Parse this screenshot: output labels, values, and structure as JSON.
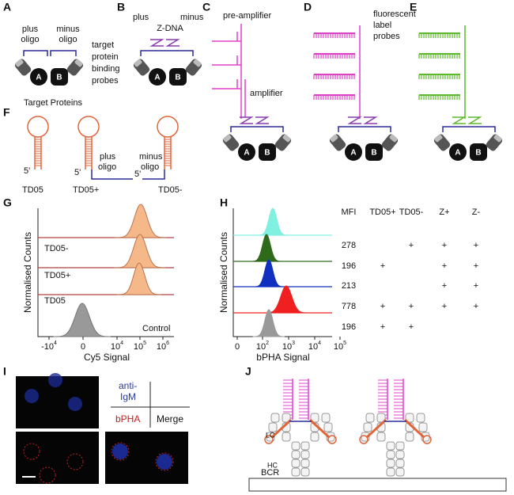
{
  "panel_labels": [
    "A",
    "B",
    "C",
    "D",
    "E",
    "F",
    "G",
    "H",
    "I",
    "J"
  ],
  "A": {
    "plus": [
      "plus",
      "oligo"
    ],
    "minus": [
      "minus",
      "oligo"
    ],
    "probes": [
      "target",
      "protein",
      "binding",
      "probes"
    ],
    "proteins": [
      "A",
      "B"
    ],
    "caption": "Target Proteins"
  },
  "B": {
    "plus": "plus",
    "minus": "minus",
    "zdna": "Z-DNA",
    "proteins": [
      "A",
      "B"
    ]
  },
  "C": {
    "pre_amplifier": "pre-amplifier",
    "amplifier": "amplifier",
    "proteins": [
      "A",
      "B"
    ]
  },
  "D": {
    "proteins": [
      "A",
      "B"
    ]
  },
  "E": {
    "probes": [
      "fluorescent",
      "label",
      "probes"
    ],
    "proteins": [
      "A",
      "B"
    ]
  },
  "F": {
    "hairpins": [
      {
        "five": "5'",
        "name": "TD05"
      },
      {
        "five": "5'",
        "name": "TD05+",
        "oligo": [
          "plus",
          "oligo"
        ]
      },
      {
        "five": "5'",
        "name": "TD05-",
        "oligo": [
          "minus",
          "oligo"
        ]
      }
    ]
  },
  "G": {
    "y_label": "Normalised Counts",
    "x_label": "Cy5 Signal",
    "rows": [
      "TD05-",
      "TD05+",
      "TD05",
      "Control"
    ],
    "x_ticks": [
      {
        "base": "-10",
        "exp": "4"
      },
      "0",
      {
        "base": "10",
        "exp": "4"
      },
      {
        "base": "10",
        "exp": "5"
      },
      {
        "base": "10",
        "exp": "6"
      }
    ]
  },
  "H": {
    "y_label": "Normalised Counts",
    "x_label": "bPHA Signal",
    "x_ticks": [
      "0",
      {
        "base": "10",
        "exp": "2"
      },
      {
        "base": "10",
        "exp": "3"
      },
      {
        "base": "10",
        "exp": "4"
      },
      {
        "base": "10",
        "exp": "5"
      }
    ],
    "columns": [
      "MFI",
      "TD05+",
      "TD05-",
      "Z+",
      "Z-"
    ],
    "rows": [
      {
        "mfi": 278,
        "cells": [
          null,
          "+",
          "+",
          "+"
        ]
      },
      {
        "mfi": 196,
        "cells": [
          "+",
          null,
          "+",
          "+"
        ]
      },
      {
        "mfi": 213,
        "cells": [
          null,
          null,
          "+",
          "+"
        ]
      },
      {
        "mfi": 778,
        "cells": [
          "+",
          "+",
          "+",
          "+"
        ]
      },
      {
        "mfi": 196,
        "cells": [
          "+",
          "+",
          null,
          null
        ]
      }
    ]
  },
  "I": {
    "legend": {
      "anti_igm": [
        "anti-",
        "IgM"
      ],
      "bpha": "bPHA",
      "merge": "Merge"
    }
  },
  "J": {
    "lc": "LC",
    "hc": "HC",
    "bcr": "BCR"
  }
}
